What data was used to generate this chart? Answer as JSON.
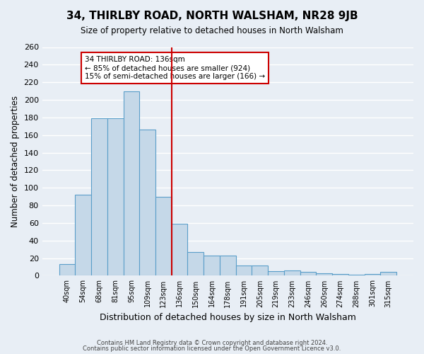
{
  "title": "34, THIRLBY ROAD, NORTH WALSHAM, NR28 9JB",
  "subtitle": "Size of property relative to detached houses in North Walsham",
  "xlabel": "Distribution of detached houses by size in North Walsham",
  "ylabel": "Number of detached properties",
  "bar_labels": [
    "40sqm",
    "54sqm",
    "68sqm",
    "81sqm",
    "95sqm",
    "109sqm",
    "123sqm",
    "136sqm",
    "150sqm",
    "164sqm",
    "178sqm",
    "191sqm",
    "205sqm",
    "219sqm",
    "233sqm",
    "246sqm",
    "260sqm",
    "274sqm",
    "288sqm",
    "301sqm",
    "315sqm"
  ],
  "bar_values": [
    13,
    92,
    179,
    179,
    210,
    166,
    90,
    59,
    27,
    23,
    23,
    12,
    12,
    5,
    6,
    4,
    3,
    2,
    1,
    2,
    4
  ],
  "bar_color": "#c5d8e8",
  "bar_edge_color": "#5a9ec9",
  "vline_label_index": 7,
  "vline_color": "#cc0000",
  "ylim_max": 260,
  "yticks": [
    0,
    20,
    40,
    60,
    80,
    100,
    120,
    140,
    160,
    180,
    200,
    220,
    240,
    260
  ],
  "annotation_title": "34 THIRLBY ROAD: 136sqm",
  "annotation_line1": "← 85% of detached houses are smaller (924)",
  "annotation_line2": "15% of semi-detached houses are larger (166) →",
  "annotation_box_color": "#ffffff",
  "annotation_box_edge": "#cc0000",
  "bg_color": "#e8eef5",
  "footer1": "Contains HM Land Registry data © Crown copyright and database right 2024.",
  "footer2": "Contains public sector information licensed under the Open Government Licence v3.0."
}
